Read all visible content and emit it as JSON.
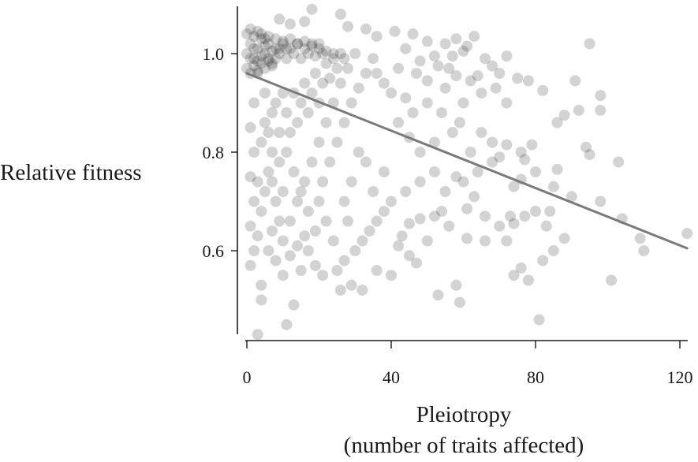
{
  "chart_data": {
    "type": "scatter",
    "xlabel": "Pleiotropy",
    "xlabel_sub": "(number of traits affected)",
    "ylabel": "Relative fitness",
    "xlim": [
      -2,
      123
    ],
    "ylim": [
      0.43,
      1.09
    ],
    "xticks": [
      0,
      40,
      80,
      120
    ],
    "xtick_labels": [
      "0",
      "40",
      "80",
      "120"
    ],
    "yticks": [
      0.6,
      0.8,
      1.0
    ],
    "ytick_labels": [
      "0.6",
      "0.8",
      "1.0"
    ],
    "grid": false,
    "legend": "none",
    "point_color": "#222222",
    "trendline_color": "#7a7a7a",
    "trendline": {
      "x": [
        0,
        122
      ],
      "y": [
        0.96,
        0.605
      ]
    },
    "series": [
      {
        "values": [
          [
            18,
            1.09
          ],
          [
            26,
            1.08
          ],
          [
            9,
            1.07
          ],
          [
            16,
            1.065
          ],
          [
            12,
            1.06
          ],
          [
            28,
            1.055
          ],
          [
            33,
            1.05
          ],
          [
            41,
            1.045
          ],
          [
            36,
            1.035
          ],
          [
            46,
            1.04
          ],
          [
            50,
            1.025
          ],
          [
            55,
            1.02
          ],
          [
            58,
            1.03
          ],
          [
            61,
            1.015
          ],
          [
            63,
            1.035
          ],
          [
            95,
            1.02
          ],
          [
            44,
            1.01
          ],
          [
            52,
            0.995
          ],
          [
            48,
            0.985
          ],
          [
            53,
            0.975
          ],
          [
            57,
            0.995
          ],
          [
            60,
            1.005
          ],
          [
            66,
            0.99
          ],
          [
            68,
            0.975
          ],
          [
            72,
            0.995
          ],
          [
            70,
            0.96
          ],
          [
            64,
            0.955
          ],
          [
            58,
            0.955
          ],
          [
            50,
            0.945
          ],
          [
            55,
            0.93
          ],
          [
            62,
            0.945
          ],
          [
            75,
            0.95
          ],
          [
            78,
            0.945
          ],
          [
            82,
            0.925
          ],
          [
            91,
            0.945
          ],
          [
            98,
            0.915
          ],
          [
            98,
            0.885
          ],
          [
            92,
            0.885
          ],
          [
            88,
            0.875
          ],
          [
            86,
            0.86
          ],
          [
            94,
            0.81
          ],
          [
            95,
            0.795
          ],
          [
            79,
            0.815
          ],
          [
            76,
            0.8
          ],
          [
            72,
            0.815
          ],
          [
            77,
            0.785
          ],
          [
            70,
            0.79
          ],
          [
            103,
            0.78
          ],
          [
            86,
            0.765
          ],
          [
            80,
            0.76
          ],
          [
            76,
            0.745
          ],
          [
            74,
            0.73
          ],
          [
            85,
            0.73
          ],
          [
            90,
            0.71
          ],
          [
            98,
            0.7
          ],
          [
            104,
            0.665
          ],
          [
            84,
            0.68
          ],
          [
            80,
            0.68
          ],
          [
            77,
            0.67
          ],
          [
            73,
            0.67
          ],
          [
            63,
            0.71
          ],
          [
            61,
            0.685
          ],
          [
            66,
            0.67
          ],
          [
            70,
            0.65
          ],
          [
            74,
            0.655
          ],
          [
            83,
            0.65
          ],
          [
            88,
            0.625
          ],
          [
            85,
            0.6
          ],
          [
            82,
            0.58
          ],
          [
            76,
            0.565
          ],
          [
            74,
            0.55
          ],
          [
            78,
            0.54
          ],
          [
            72,
            0.62
          ],
          [
            66,
            0.62
          ],
          [
            61,
            0.625
          ],
          [
            56,
            0.65
          ],
          [
            52,
            0.67
          ],
          [
            48,
            0.665
          ],
          [
            45,
            0.655
          ],
          [
            43,
            0.63
          ],
          [
            42,
            0.61
          ],
          [
            45,
            0.59
          ],
          [
            47,
            0.575
          ],
          [
            50,
            0.62
          ],
          [
            58,
            0.53
          ],
          [
            59,
            0.495
          ],
          [
            53,
            0.51
          ],
          [
            101,
            0.54
          ],
          [
            109,
            0.625
          ],
          [
            110,
            0.6
          ],
          [
            122,
            0.635
          ],
          [
            81,
            0.46
          ],
          [
            58,
            0.75
          ],
          [
            55,
            0.72
          ],
          [
            60,
            0.74
          ],
          [
            64,
            0.76
          ],
          [
            68,
            0.78
          ],
          [
            62,
            0.8
          ],
          [
            57,
            0.84
          ],
          [
            52,
            0.82
          ],
          [
            48,
            0.8
          ],
          [
            45,
            0.83
          ],
          [
            42,
            0.86
          ],
          [
            46,
            0.88
          ],
          [
            50,
            0.9
          ],
          [
            44,
            0.91
          ],
          [
            40,
            0.92
          ],
          [
            38,
            0.94
          ],
          [
            36,
            0.96
          ],
          [
            42,
            0.97
          ],
          [
            47,
            0.96
          ],
          [
            54,
            0.88
          ],
          [
            59,
            0.86
          ],
          [
            65,
            0.84
          ],
          [
            68,
            0.82
          ],
          [
            60,
            0.9
          ],
          [
            65,
            0.92
          ],
          [
            69,
            0.93
          ],
          [
            72,
            0.9
          ],
          [
            56,
            0.97
          ],
          [
            40,
            0.7
          ],
          [
            38,
            0.68
          ],
          [
            36,
            0.66
          ],
          [
            34,
            0.64
          ],
          [
            32,
            0.62
          ],
          [
            35,
            0.72
          ],
          [
            38,
            0.76
          ],
          [
            33,
            0.78
          ],
          [
            31,
            0.8
          ],
          [
            29,
            0.74
          ],
          [
            27,
            0.7
          ],
          [
            28,
            0.66
          ],
          [
            30,
            0.6
          ],
          [
            27,
            0.58
          ],
          [
            25,
            0.56
          ],
          [
            24,
            0.62
          ],
          [
            22,
            0.66
          ],
          [
            20,
            0.7
          ],
          [
            21,
            0.74
          ],
          [
            23,
            0.78
          ],
          [
            25,
            0.82
          ],
          [
            27,
            0.86
          ],
          [
            29,
            0.9
          ],
          [
            31,
            0.93
          ],
          [
            33,
            0.96
          ],
          [
            35,
            0.99
          ],
          [
            30,
            1.0
          ],
          [
            28,
            0.97
          ],
          [
            26,
            0.94
          ],
          [
            24,
            0.9
          ],
          [
            22,
            0.86
          ],
          [
            20,
            0.82
          ],
          [
            18,
            0.78
          ],
          [
            16,
            0.74
          ],
          [
            14,
            0.7
          ],
          [
            12,
            0.66
          ],
          [
            10,
            0.62
          ],
          [
            8,
            0.58
          ],
          [
            6,
            0.6
          ],
          [
            4,
            0.53
          ],
          [
            4,
            0.5
          ],
          [
            3,
            0.43
          ],
          [
            11,
            0.45
          ],
          [
            13,
            0.49
          ],
          [
            15,
            0.56
          ],
          [
            17,
            0.6
          ],
          [
            19,
            0.64
          ],
          [
            17,
            0.68
          ],
          [
            15,
            0.72
          ],
          [
            13,
            0.76
          ],
          [
            11,
            0.8
          ],
          [
            9,
            0.84
          ],
          [
            7,
            0.88
          ],
          [
            5,
            0.92
          ],
          [
            3,
            0.96
          ],
          [
            2,
            0.9
          ],
          [
            1,
            0.85
          ],
          [
            2,
            0.8
          ],
          [
            1,
            0.75
          ],
          [
            2,
            0.7
          ],
          [
            1,
            0.65
          ],
          [
            2,
            0.6
          ],
          [
            1,
            0.57
          ],
          [
            3,
            0.63
          ],
          [
            4,
            0.68
          ],
          [
            5,
            0.72
          ],
          [
            6,
            0.76
          ],
          [
            7,
            0.8
          ],
          [
            8,
            0.7
          ],
          [
            9,
            0.66
          ],
          [
            10,
            0.72
          ],
          [
            11,
            0.88
          ],
          [
            12,
            0.84
          ],
          [
            13,
            0.92
          ],
          [
            14,
            0.86
          ],
          [
            15,
            0.9
          ],
          [
            16,
            0.94
          ],
          [
            17,
            0.88
          ],
          [
            18,
            0.92
          ],
          [
            19,
            0.96
          ],
          [
            20,
            0.9
          ],
          [
            21,
            0.94
          ],
          [
            22,
            0.98
          ],
          [
            23,
            0.95
          ],
          [
            24,
            0.99
          ],
          [
            25,
            0.97
          ],
          [
            26,
            1.0
          ],
          [
            27,
            0.99
          ],
          [
            3,
            0.74
          ],
          [
            4,
            0.82
          ],
          [
            5,
            0.86
          ],
          [
            6,
            0.84
          ],
          [
            7,
            0.74
          ],
          [
            8,
            0.9
          ],
          [
            9,
            0.78
          ],
          [
            10,
            0.92
          ],
          [
            36,
            0.56
          ],
          [
            40,
            0.55
          ],
          [
            44,
            0.72
          ],
          [
            48,
            0.74
          ],
          [
            52,
            0.76
          ],
          [
            54,
            0.68
          ],
          [
            32,
            0.52
          ],
          [
            29,
            0.53
          ],
          [
            26,
            0.52
          ],
          [
            21,
            0.55
          ],
          [
            19,
            0.57
          ],
          [
            16,
            0.63
          ],
          [
            14,
            0.61
          ],
          [
            12,
            0.59
          ],
          [
            10,
            0.55
          ],
          [
            7,
            0.64
          ]
        ]
      },
      {
        "values": [
          [
            0,
            1.0
          ],
          [
            1,
            1.02
          ],
          [
            2,
            0.99
          ],
          [
            3,
            1.01
          ],
          [
            4,
            1.03
          ],
          [
            5,
            1.0
          ],
          [
            6,
            1.02
          ],
          [
            7,
            0.98
          ],
          [
            8,
            1.01
          ],
          [
            9,
            1.0
          ],
          [
            10,
            1.02
          ],
          [
            11,
            0.99
          ],
          [
            12,
            1.01
          ],
          [
            13,
            1.0
          ],
          [
            14,
            1.02
          ],
          [
            15,
            0.99
          ],
          [
            16,
            1.01
          ],
          [
            17,
            1.0
          ],
          [
            18,
            1.015
          ],
          [
            19,
            0.995
          ],
          [
            20,
            1.01
          ],
          [
            21,
            1.0
          ],
          [
            22,
            1.005
          ],
          [
            24,
            1.0
          ],
          [
            0,
            0.97
          ],
          [
            1,
            0.96
          ],
          [
            2,
            0.975
          ],
          [
            3,
            0.965
          ],
          [
            4,
            0.98
          ],
          [
            5,
            0.97
          ],
          [
            6,
            0.985
          ],
          [
            7,
            0.975
          ],
          [
            0,
            1.04
          ],
          [
            1,
            1.05
          ],
          [
            2,
            1.035
          ],
          [
            3,
            1.045
          ],
          [
            4,
            1.04
          ],
          [
            5,
            1.03
          ],
          [
            6,
            1.035
          ],
          [
            8,
            1.03
          ],
          [
            10,
            1.025
          ],
          [
            12,
            1.03
          ],
          [
            14,
            1.02
          ],
          [
            16,
            1.025
          ],
          [
            18,
            1.02
          ],
          [
            20,
            1.02
          ],
          [
            1,
            0.99
          ],
          [
            2,
            1.01
          ],
          [
            3,
            0.985
          ],
          [
            4,
            0.995
          ],
          [
            5,
            1.015
          ],
          [
            6,
            0.99
          ],
          [
            7,
            1.005
          ],
          [
            8,
            0.99
          ],
          [
            9,
            1.01
          ],
          [
            11,
            1.01
          ]
        ]
      }
    ]
  }
}
